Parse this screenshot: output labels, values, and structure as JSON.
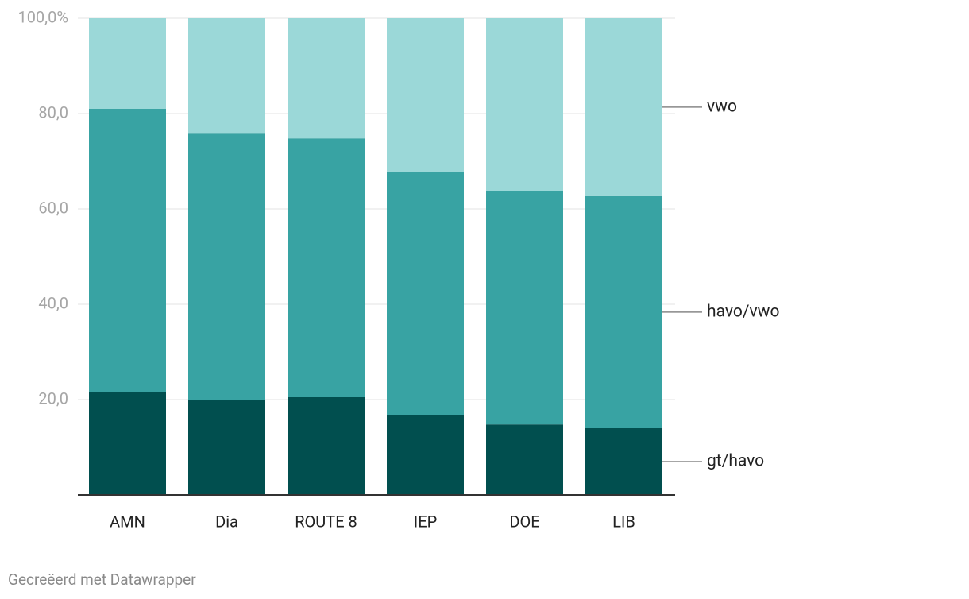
{
  "chart_data": {
    "type": "stacked_bar",
    "categories": [
      "AMN",
      "Dia",
      "ROUTE 8",
      "IEP",
      "DOE",
      "LIB"
    ],
    "series": [
      {
        "name": "gt/havo",
        "color": "#014f4f",
        "values": [
          21.5,
          20.0,
          20.5,
          16.8,
          14.8,
          14.0
        ]
      },
      {
        "name": "havo/vwo",
        "color": "#38a3a3",
        "values": [
          59.5,
          55.8,
          54.3,
          50.9,
          48.9,
          48.7
        ]
      },
      {
        "name": "vwo",
        "color": "#9bd8d8",
        "values": [
          19.0,
          24.2,
          25.2,
          32.3,
          36.3,
          37.3
        ]
      }
    ],
    "ylim": [
      0,
      100
    ],
    "yticks": [
      {
        "value": 20,
        "label": "20,0"
      },
      {
        "value": 40,
        "label": "40,0"
      },
      {
        "value": 60,
        "label": "60,0"
      },
      {
        "value": 80,
        "label": "80,0"
      },
      {
        "value": 100,
        "label": "100,0%"
      }
    ],
    "grid": true,
    "footer": "Gecreëerd met Datawrapper"
  }
}
